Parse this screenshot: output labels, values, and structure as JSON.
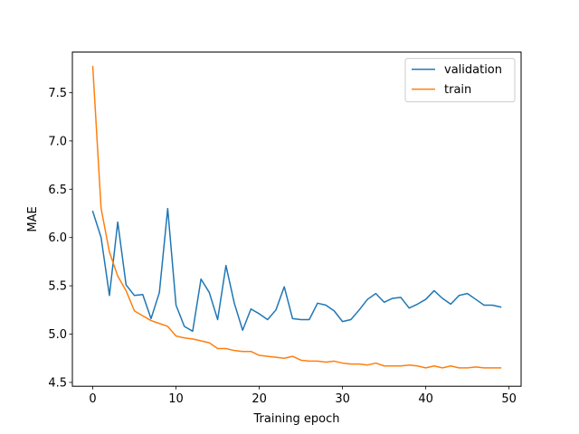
{
  "chart_data": {
    "type": "line",
    "title": "",
    "xlabel": "Training epoch",
    "ylabel": "MAE",
    "xlim": [
      -2.45,
      51.45
    ],
    "ylim": [
      4.46,
      7.92
    ],
    "xticks": [
      0,
      10,
      20,
      30,
      40,
      50
    ],
    "yticks": [
      4.5,
      5.0,
      5.5,
      6.0,
      6.5,
      7.0,
      7.5
    ],
    "ytick_labels": [
      "4.5",
      "5.0",
      "5.5",
      "6.0",
      "6.5",
      "7.0",
      "7.5"
    ],
    "grid": false,
    "legend_position": "top-right",
    "x": [
      0,
      1,
      2,
      3,
      4,
      5,
      6,
      7,
      8,
      9,
      10,
      11,
      12,
      13,
      14,
      15,
      16,
      17,
      18,
      19,
      20,
      21,
      22,
      23,
      24,
      25,
      26,
      27,
      28,
      29,
      30,
      31,
      32,
      33,
      34,
      35,
      36,
      37,
      38,
      39,
      40,
      41,
      42,
      43,
      44,
      45,
      46,
      47,
      48,
      49
    ],
    "series": [
      {
        "name": "validation",
        "color": "#1f77b4",
        "values": [
          6.27,
          6.0,
          5.4,
          6.16,
          5.51,
          5.4,
          5.41,
          5.16,
          5.43,
          6.3,
          5.3,
          5.08,
          5.03,
          5.57,
          5.43,
          5.15,
          5.71,
          5.32,
          5.04,
          5.26,
          5.21,
          5.15,
          5.25,
          5.49,
          5.16,
          5.15,
          5.15,
          5.32,
          5.3,
          5.24,
          5.13,
          5.15,
          5.25,
          5.36,
          5.42,
          5.33,
          5.37,
          5.38,
          5.27,
          5.31,
          5.36,
          5.45,
          5.37,
          5.31,
          5.4,
          5.42,
          5.36,
          5.3,
          5.3,
          5.28
        ]
      },
      {
        "name": "train",
        "color": "#ff7f0e",
        "values": [
          7.77,
          6.3,
          5.85,
          5.6,
          5.45,
          5.24,
          5.19,
          5.14,
          5.11,
          5.08,
          4.98,
          4.96,
          4.95,
          4.93,
          4.91,
          4.85,
          4.85,
          4.83,
          4.82,
          4.82,
          4.78,
          4.77,
          4.76,
          4.75,
          4.77,
          4.73,
          4.72,
          4.72,
          4.71,
          4.72,
          4.7,
          4.69,
          4.69,
          4.68,
          4.7,
          4.67,
          4.67,
          4.67,
          4.68,
          4.67,
          4.65,
          4.67,
          4.65,
          4.67,
          4.65,
          4.65,
          4.66,
          4.65,
          4.65,
          4.65
        ]
      }
    ]
  }
}
